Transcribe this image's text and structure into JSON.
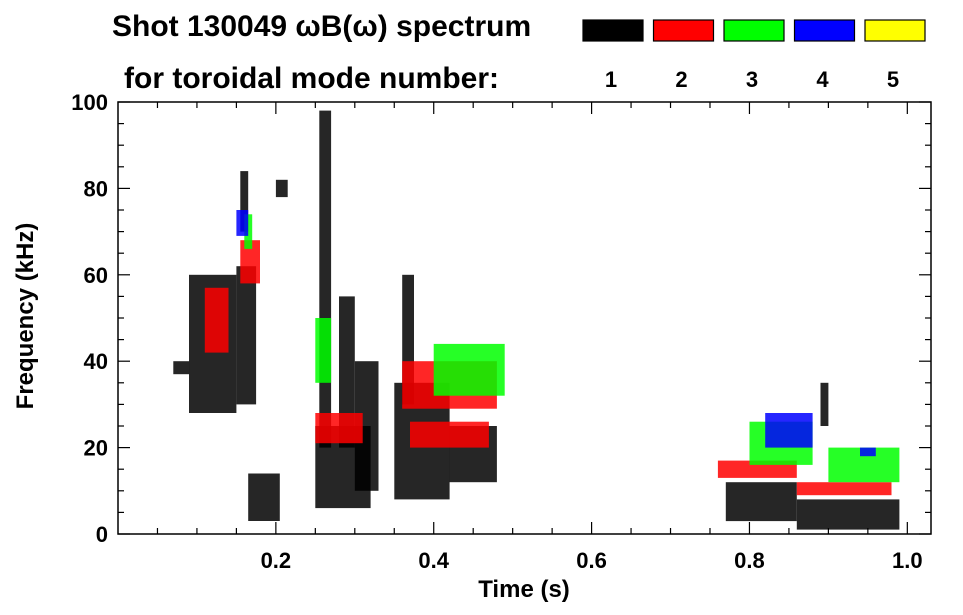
{
  "chart_data": {
    "type": "heatmap",
    "title": "Shot 130049 ωB(ω) spectrum",
    "subtitle": "for toroidal mode number:",
    "xlabel": "Time (s)",
    "ylabel": "Frequency (kHz)",
    "xlim": [
      0.0,
      1.03
    ],
    "ylim": [
      0,
      100
    ],
    "x_ticks": [
      {
        "value": 0.2,
        "label": "0.2"
      },
      {
        "value": 0.4,
        "label": "0.4"
      },
      {
        "value": 0.6,
        "label": "0.6"
      },
      {
        "value": 0.8,
        "label": "0.8"
      },
      {
        "value": 1.0,
        "label": "1.0"
      }
    ],
    "y_ticks": [
      {
        "value": 0,
        "label": "0"
      },
      {
        "value": 20,
        "label": "20"
      },
      {
        "value": 40,
        "label": "40"
      },
      {
        "value": 60,
        "label": "60"
      },
      {
        "value": 80,
        "label": "80"
      },
      {
        "value": 100,
        "label": "100"
      }
    ],
    "x_minor_step": 0.05,
    "y_minor_step": 5,
    "grid": false,
    "legend": {
      "placement": "top-right",
      "entries": [
        {
          "label": "1",
          "color": "#000000"
        },
        {
          "label": "2",
          "color": "#ff0000"
        },
        {
          "label": "3",
          "color": "#00ff00"
        },
        {
          "label": "4",
          "color": "#0000ff"
        },
        {
          "label": "5",
          "color": "#ffff00"
        }
      ]
    },
    "series": [
      {
        "mode": 1,
        "color": "#000000",
        "regions": [
          {
            "t": [
              0.07,
              0.09
            ],
            "f": [
              37,
              40
            ]
          },
          {
            "t": [
              0.09,
              0.15
            ],
            "f": [
              28,
              60
            ]
          },
          {
            "t": [
              0.15,
              0.175
            ],
            "f": [
              30,
              62
            ]
          },
          {
            "t": [
              0.155,
              0.165
            ],
            "f": [
              70,
              84
            ]
          },
          {
            "t": [
              0.165,
              0.205
            ],
            "f": [
              3,
              14
            ]
          },
          {
            "t": [
              0.2,
              0.215
            ],
            "f": [
              78,
              82
            ]
          },
          {
            "t": [
              0.25,
              0.32
            ],
            "f": [
              6,
              25
            ]
          },
          {
            "t": [
              0.255,
              0.27
            ],
            "f": [
              20,
              98
            ]
          },
          {
            "t": [
              0.28,
              0.3
            ],
            "f": [
              20,
              55
            ]
          },
          {
            "t": [
              0.3,
              0.33
            ],
            "f": [
              10,
              40
            ]
          },
          {
            "t": [
              0.35,
              0.42
            ],
            "f": [
              8,
              35
            ]
          },
          {
            "t": [
              0.36,
              0.375
            ],
            "f": [
              30,
              60
            ]
          },
          {
            "t": [
              0.42,
              0.48
            ],
            "f": [
              12,
              25
            ]
          },
          {
            "t": [
              0.77,
              0.86
            ],
            "f": [
              3,
              12
            ]
          },
          {
            "t": [
              0.86,
              0.99
            ],
            "f": [
              1,
              8
            ]
          },
          {
            "t": [
              0.89,
              0.9
            ],
            "f": [
              25,
              35
            ]
          }
        ]
      },
      {
        "mode": 2,
        "color": "#ff0000",
        "regions": [
          {
            "t": [
              0.11,
              0.14
            ],
            "f": [
              42,
              57
            ]
          },
          {
            "t": [
              0.155,
              0.18
            ],
            "f": [
              58,
              68
            ]
          },
          {
            "t": [
              0.25,
              0.31
            ],
            "f": [
              21,
              28
            ]
          },
          {
            "t": [
              0.36,
              0.48
            ],
            "f": [
              29,
              40
            ]
          },
          {
            "t": [
              0.37,
              0.47
            ],
            "f": [
              20,
              26
            ]
          },
          {
            "t": [
              0.76,
              0.86
            ],
            "f": [
              13,
              17
            ]
          },
          {
            "t": [
              0.86,
              0.98
            ],
            "f": [
              9,
              12
            ]
          }
        ]
      },
      {
        "mode": 3,
        "color": "#00ff00",
        "regions": [
          {
            "t": [
              0.16,
              0.17
            ],
            "f": [
              66,
              74
            ]
          },
          {
            "t": [
              0.25,
              0.27
            ],
            "f": [
              35,
              50
            ]
          },
          {
            "t": [
              0.4,
              0.49
            ],
            "f": [
              32,
              44
            ]
          },
          {
            "t": [
              0.8,
              0.88
            ],
            "f": [
              16,
              26
            ]
          },
          {
            "t": [
              0.9,
              0.99
            ],
            "f": [
              12,
              20
            ]
          }
        ]
      },
      {
        "mode": 4,
        "color": "#0000ff",
        "regions": [
          {
            "t": [
              0.15,
              0.165
            ],
            "f": [
              69,
              75
            ]
          },
          {
            "t": [
              0.82,
              0.88
            ],
            "f": [
              20,
              28
            ]
          },
          {
            "t": [
              0.94,
              0.96
            ],
            "f": [
              18,
              20
            ]
          }
        ]
      },
      {
        "mode": 5,
        "color": "#ffff00",
        "regions": []
      }
    ]
  }
}
